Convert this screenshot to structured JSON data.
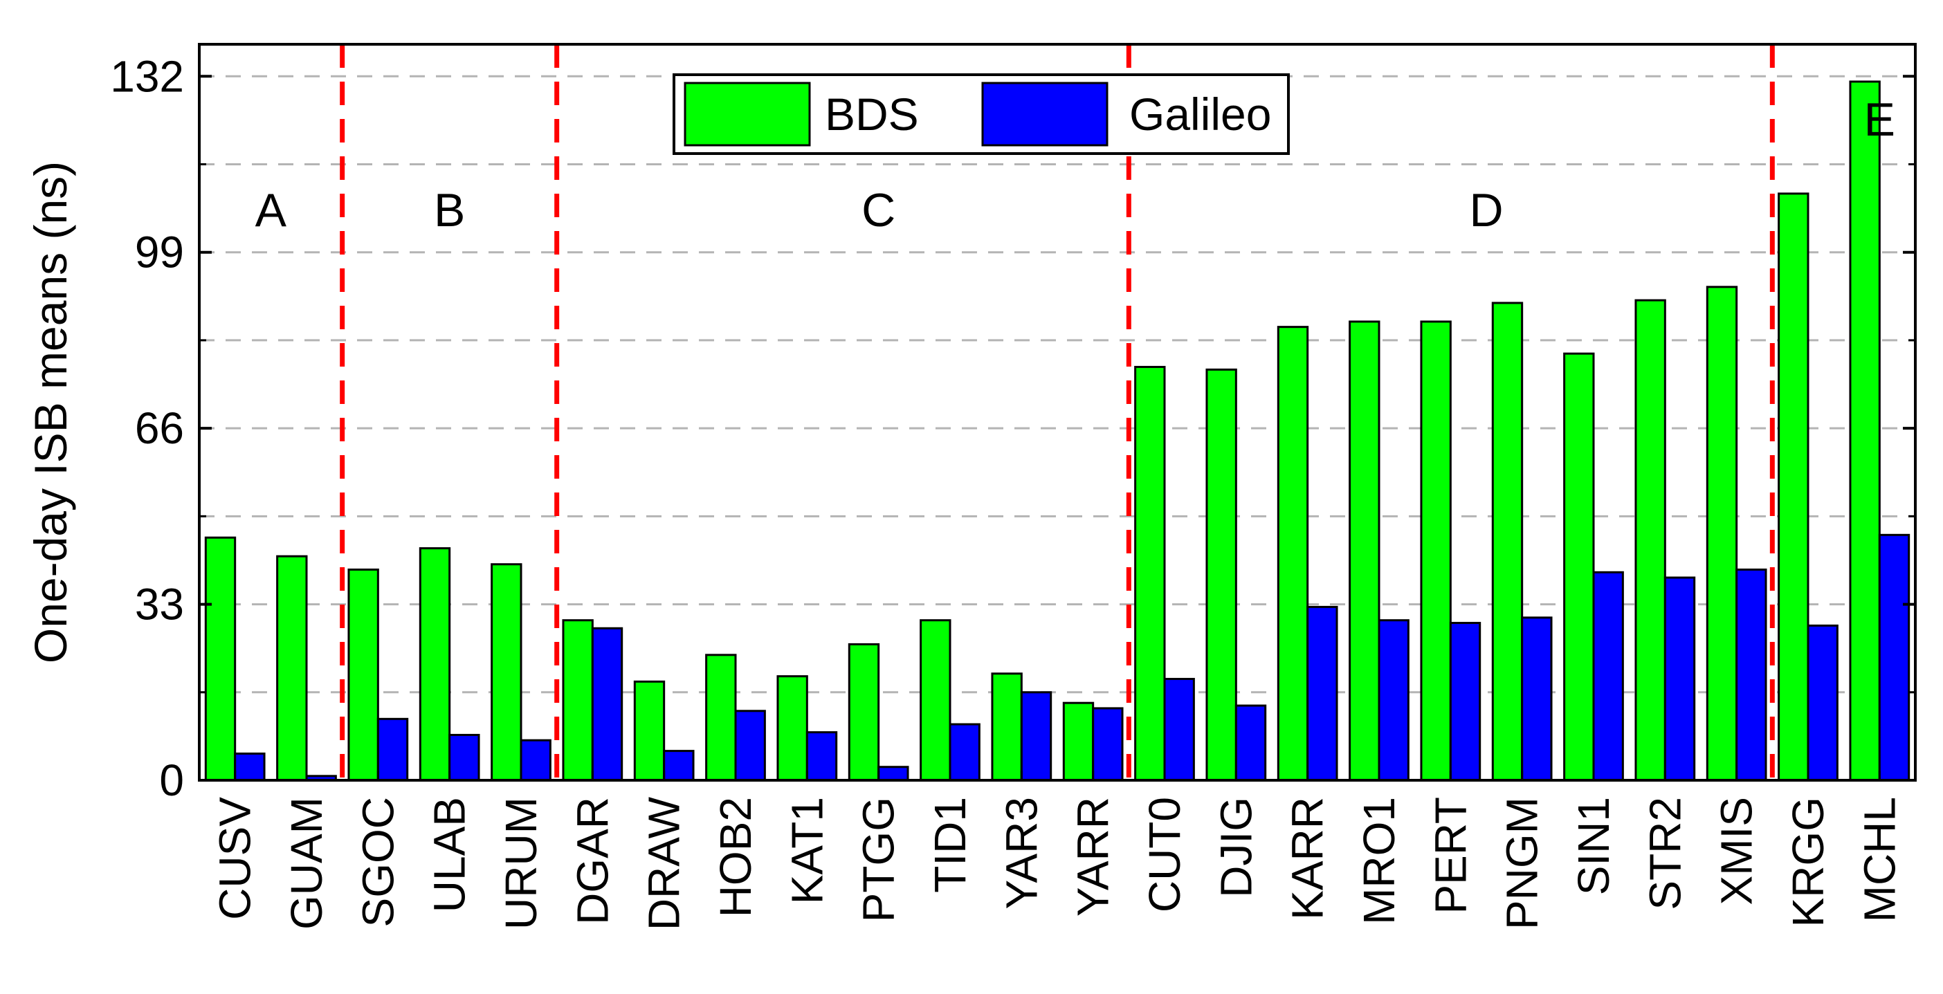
{
  "chart_data": {
    "type": "bar",
    "title": "",
    "xlabel": "",
    "ylabel": "One-day ISB means (ns)",
    "ylim": [
      0,
      138
    ],
    "yticks": [
      0,
      33,
      66,
      99,
      132
    ],
    "ygrid_minor": [
      16.5,
      49.5,
      82.5,
      115.5
    ],
    "grid": true,
    "legend_position": "top-center",
    "categories": [
      "CUSV",
      "GUAM",
      "SGOC",
      "ULAB",
      "URUM",
      "DGAR",
      "DRAW",
      "HOB2",
      "KAT1",
      "PTGG",
      "TID1",
      "YAR3",
      "YARR",
      "CUT0",
      "DJIG",
      "KARR",
      "MRO1",
      "PERT",
      "PNGM",
      "SIN1",
      "STR2",
      "XMIS",
      "KRGG",
      "MCHL"
    ],
    "series": [
      {
        "name": "BDS",
        "color": "#00ff00",
        "values": [
          45.5,
          42,
          39.5,
          43.5,
          40.5,
          30,
          18.5,
          23.5,
          19.5,
          25.5,
          30,
          20,
          14.5,
          77.5,
          77,
          85,
          86,
          86,
          89.5,
          80,
          90,
          92.5,
          110,
          131
        ]
      },
      {
        "name": "Galileo",
        "color": "#0000ff",
        "values": [
          5,
          0.8,
          11.5,
          8.5,
          7.5,
          28.5,
          5.5,
          13,
          9,
          2.5,
          10.5,
          16.5,
          13.5,
          19,
          14,
          32.5,
          30,
          29.5,
          30.5,
          39,
          38,
          39.5,
          29,
          46
        ]
      }
    ],
    "group_dividers_after": [
      1,
      4,
      12,
      21
    ],
    "group_labels": [
      {
        "label": "A",
        "center_index": 0.5,
        "y": 107
      },
      {
        "label": "B",
        "center_index": 3,
        "y": 107
      },
      {
        "label": "C",
        "center_index": 9,
        "y": 107
      },
      {
        "label": "D",
        "center_index": 17.5,
        "y": 107
      },
      {
        "label": "E",
        "center_index": 23,
        "y": 124
      }
    ],
    "divider_color": "#ff0000"
  }
}
